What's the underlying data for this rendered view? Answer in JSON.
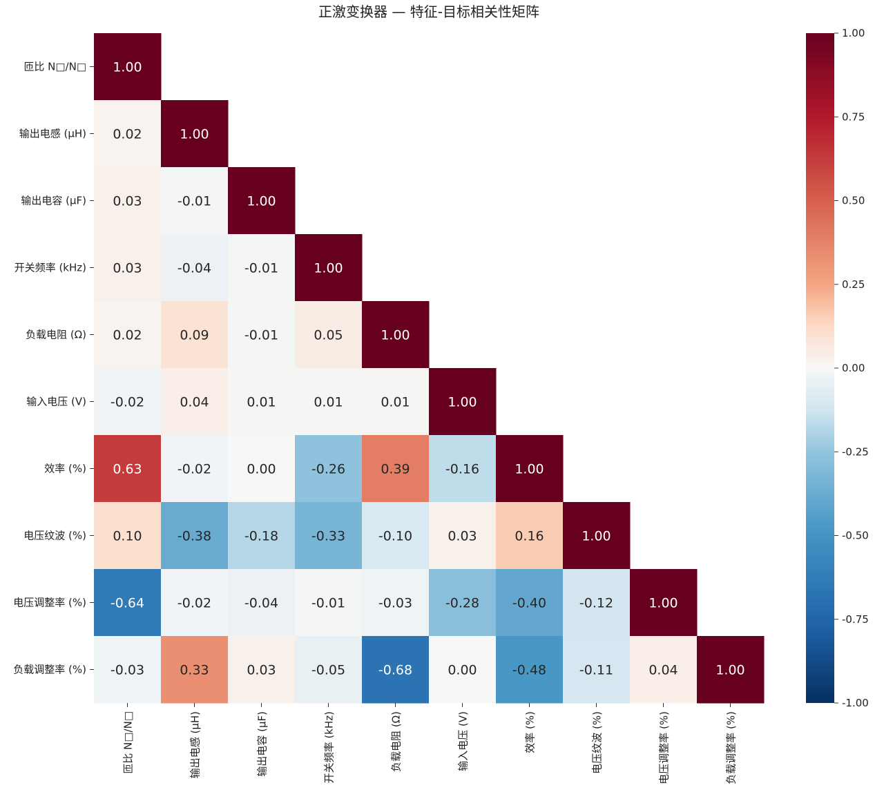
{
  "chart_data": {
    "type": "heatmap",
    "title": "正激变换器 — 特征-目标相关性矩阵",
    "xlabel": "",
    "ylabel": "",
    "mask": "upper-triangle",
    "categories": [
      "匝比 N□/N□",
      "输出电感 (μH)",
      "输出电容 (μF)",
      "开关频率 (kHz)",
      "负载电阻 (Ω)",
      "输入电压 (V)",
      "效率 (%)",
      "电压纹波 (%)",
      "电压调整率 (%)",
      "负载调整率 (%)"
    ],
    "matrix": [
      [
        1.0
      ],
      [
        0.02,
        1.0
      ],
      [
        0.03,
        -0.01,
        1.0
      ],
      [
        0.03,
        -0.04,
        -0.01,
        1.0
      ],
      [
        0.02,
        0.09,
        -0.01,
        0.05,
        1.0
      ],
      [
        -0.02,
        0.04,
        0.01,
        0.01,
        0.01,
        1.0
      ],
      [
        0.63,
        -0.02,
        0.0,
        -0.26,
        0.39,
        -0.16,
        1.0
      ],
      [
        0.1,
        -0.38,
        -0.18,
        -0.33,
        -0.1,
        0.03,
        0.16,
        1.0
      ],
      [
        -0.64,
        -0.02,
        -0.04,
        -0.01,
        -0.03,
        -0.28,
        -0.4,
        -0.12,
        1.0
      ],
      [
        -0.03,
        0.33,
        0.03,
        -0.05,
        -0.68,
        0.0,
        -0.48,
        -0.11,
        0.04,
        1.0
      ]
    ],
    "colorbar": {
      "vmin": -1.0,
      "vmax": 1.0,
      "ticks": [
        "1.00",
        "0.75",
        "0.50",
        "0.25",
        "0.00",
        "-0.25",
        "-0.50",
        "-0.75",
        "-1.00"
      ],
      "tick_values": [
        1.0,
        0.75,
        0.5,
        0.25,
        0.0,
        -0.25,
        -0.5,
        -0.75,
        -1.0
      ],
      "colormap": "RdBu_r"
    },
    "grid": false
  }
}
